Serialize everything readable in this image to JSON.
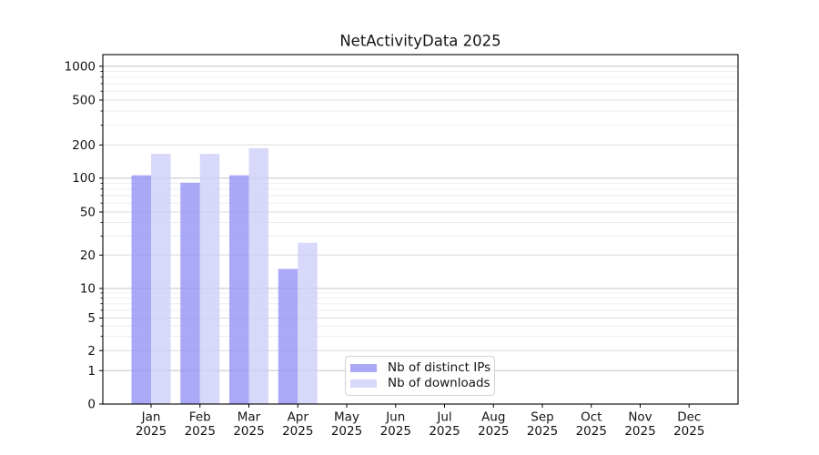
{
  "chart_data": {
    "type": "bar",
    "title": "NetActivityData 2025",
    "categories": [
      "Jan",
      "Feb",
      "Mar",
      "Apr",
      "May",
      "Jun",
      "Jul",
      "Aug",
      "Sep",
      "Oct",
      "Nov",
      "Dec"
    ],
    "category_year": "2025",
    "series": [
      {
        "name": "Nb of distinct IPs",
        "color": "#9494f6",
        "values": [
          106,
          91,
          106,
          15,
          null,
          null,
          null,
          null,
          null,
          null,
          null,
          null
        ]
      },
      {
        "name": "Nb of downloads",
        "color": "#cecef9",
        "values": [
          166,
          166,
          187,
          26,
          null,
          null,
          null,
          null,
          null,
          null,
          null,
          null
        ]
      }
    ],
    "bar_alpha": 0.8,
    "yscale": "symlog",
    "yticks": [
      0,
      1,
      2,
      5,
      10,
      20,
      50,
      100,
      200,
      500,
      1000
    ],
    "ylim": [
      0,
      1300
    ],
    "xlabel": "",
    "ylabel": "",
    "grid": {
      "horizontal": true,
      "vertical": false,
      "minor": true
    },
    "legend": {
      "position": "lower-center inside plot",
      "entries": [
        "Nb of distinct IPs",
        "Nb of downloads"
      ]
    }
  }
}
